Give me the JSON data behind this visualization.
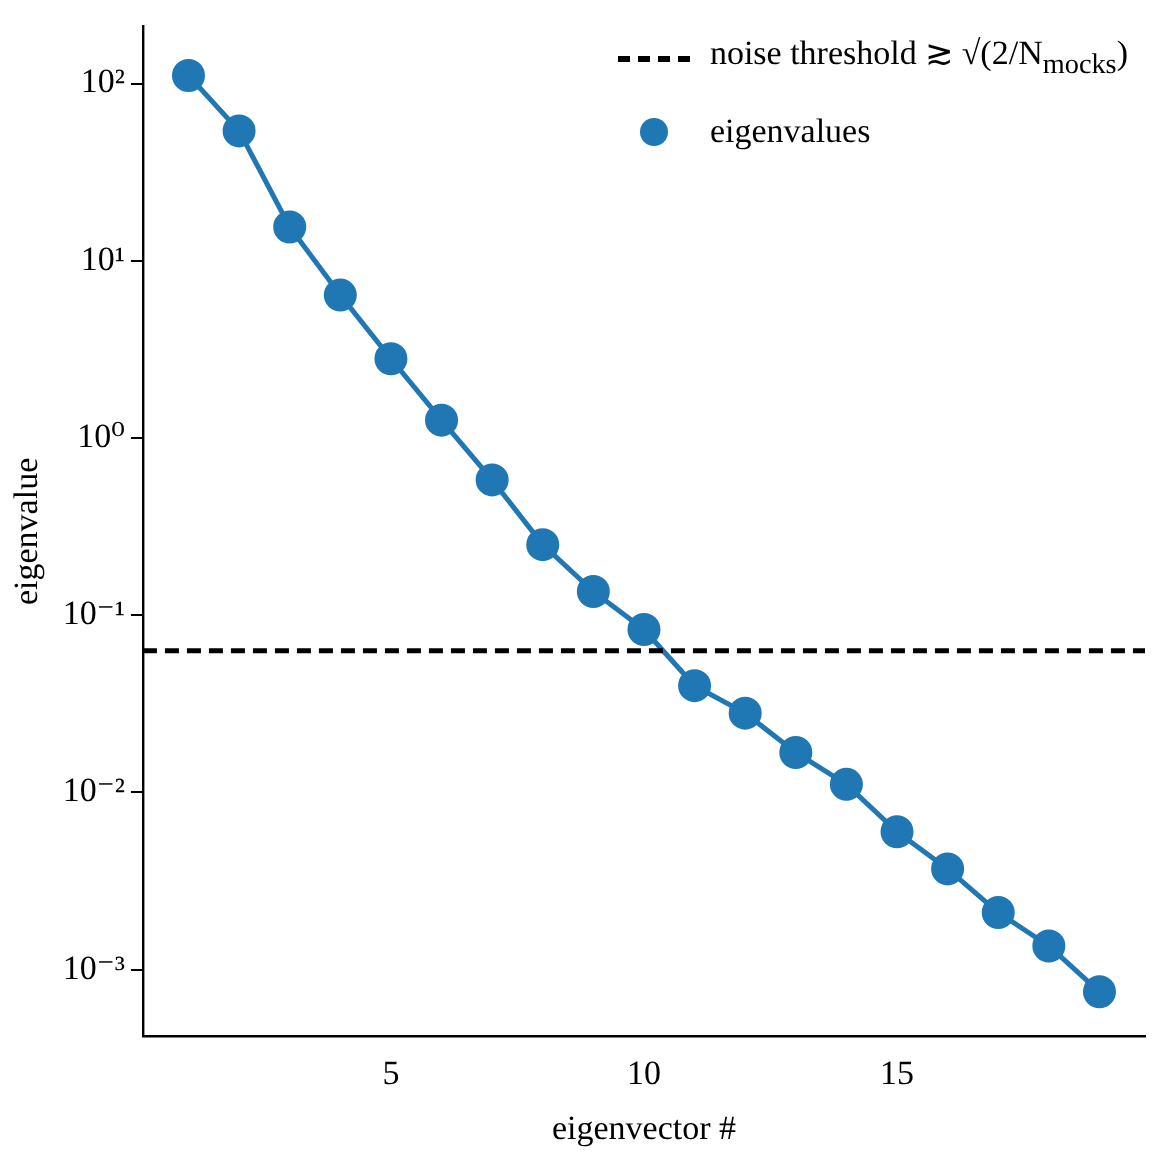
{
  "chart_data": {
    "type": "line",
    "xlabel": "eigenvector #",
    "ylabel": "eigenvalue",
    "x": [
      1,
      2,
      3,
      4,
      5,
      6,
      7,
      8,
      9,
      10,
      11,
      12,
      13,
      14,
      15,
      16,
      17,
      18,
      19
    ],
    "series": [
      {
        "name": "eigenvalues",
        "color": "#1f77b4",
        "values": [
          111,
          54,
          15.5,
          6.4,
          2.8,
          1.26,
          0.58,
          0.25,
          0.136,
          0.083,
          0.04,
          0.028,
          0.0168,
          0.0111,
          0.006,
          0.0037,
          0.0021,
          0.00136,
          0.00075
        ]
      }
    ],
    "marker": "circle",
    "line_style": "solid",
    "log": "y",
    "grid": false,
    "legend": "top right",
    "xlim": [
      0.1,
      19.9
    ],
    "xticks": [
      5,
      10,
      15
    ],
    "ylim": [
      0.00042,
      210
    ],
    "yticks": [
      {
        "value": 0.001,
        "label": "10⁻³"
      },
      {
        "value": 0.01,
        "label": "10⁻²"
      },
      {
        "value": 0.1,
        "label": "10⁻¹"
      },
      {
        "value": 1,
        "label": "10⁰"
      },
      {
        "value": 10,
        "label": "10¹"
      },
      {
        "value": 100,
        "label": "10²"
      }
    ],
    "ref_lines": [
      {
        "axis": "y",
        "value": 0.063,
        "label": "noise threshold ≳ √(2/N$_{mocks}$)",
        "color": "#000000",
        "line_style": "dashed"
      }
    ]
  }
}
